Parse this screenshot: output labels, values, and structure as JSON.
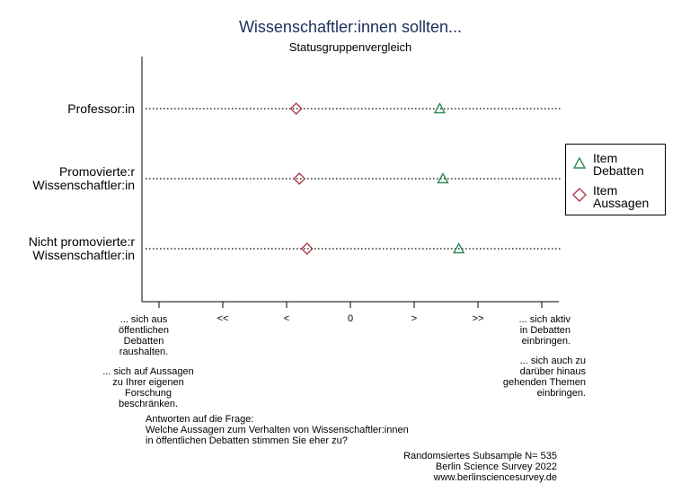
{
  "chart_data": {
    "type": "scatter",
    "title": "Wissenschaftler:innen sollten...",
    "subtitle": "Statusgruppenvergleich",
    "categories": [
      "Professor:in",
      "Promovierte:r Wissenschaftler:in",
      "Nicht promovierte:r Wissenschaftler:in"
    ],
    "category_lines": [
      [
        "Professor:in"
      ],
      [
        "Promovierte:r",
        "Wissenschaftler:in"
      ],
      [
        "Nicht promovierte:r",
        "Wissenschaftler:in"
      ]
    ],
    "series": [
      {
        "name": "Item Debatten",
        "name_lines": [
          "Item",
          "Debatten"
        ],
        "marker": "triangle",
        "color": "#2e8b57",
        "values": [
          1.4,
          1.45,
          1.7
        ]
      },
      {
        "name": "Item Aussagen",
        "name_lines": [
          "Item",
          "Aussagen"
        ],
        "marker": "diamond",
        "color": "#b03a48",
        "values": [
          -0.85,
          -0.8,
          -0.68
        ]
      }
    ],
    "xlim": [
      -3,
      3
    ],
    "xticks": [
      -3,
      -2,
      -1,
      0,
      1,
      2,
      3
    ],
    "xtick_labels": [
      "",
      "<<",
      "<",
      "0",
      ">",
      ">>",
      ""
    ],
    "left_annotation": {
      "block1": [
        "... sich aus",
        "öffentlichen",
        "Debatten",
        "raushalten."
      ],
      "block2": [
        "... sich auf Aussagen",
        "zu Ihrer eigenen",
        "Forschung",
        "beschränken."
      ]
    },
    "right_annotation": {
      "block1": [
        "... sich aktiv",
        "in Debatten",
        "einbringen."
      ],
      "block2": [
        "... sich auch zu",
        "darüber hinaus",
        "gehenden Themen",
        "einbringen."
      ]
    },
    "legend_position": "right",
    "grid": false
  },
  "note": {
    "question": [
      "Antworten auf die Frage:",
      "Welche Aussagen zum Verhalten von Wissenschaftler:innen",
      "in öffentlichen Debatten stimmen Sie eher zu?"
    ],
    "footer": [
      "Randomsiertes Subsample N= 535",
      "Berlin Science Survey 2022",
      "www.berlinsciencesurvey.de"
    ]
  }
}
